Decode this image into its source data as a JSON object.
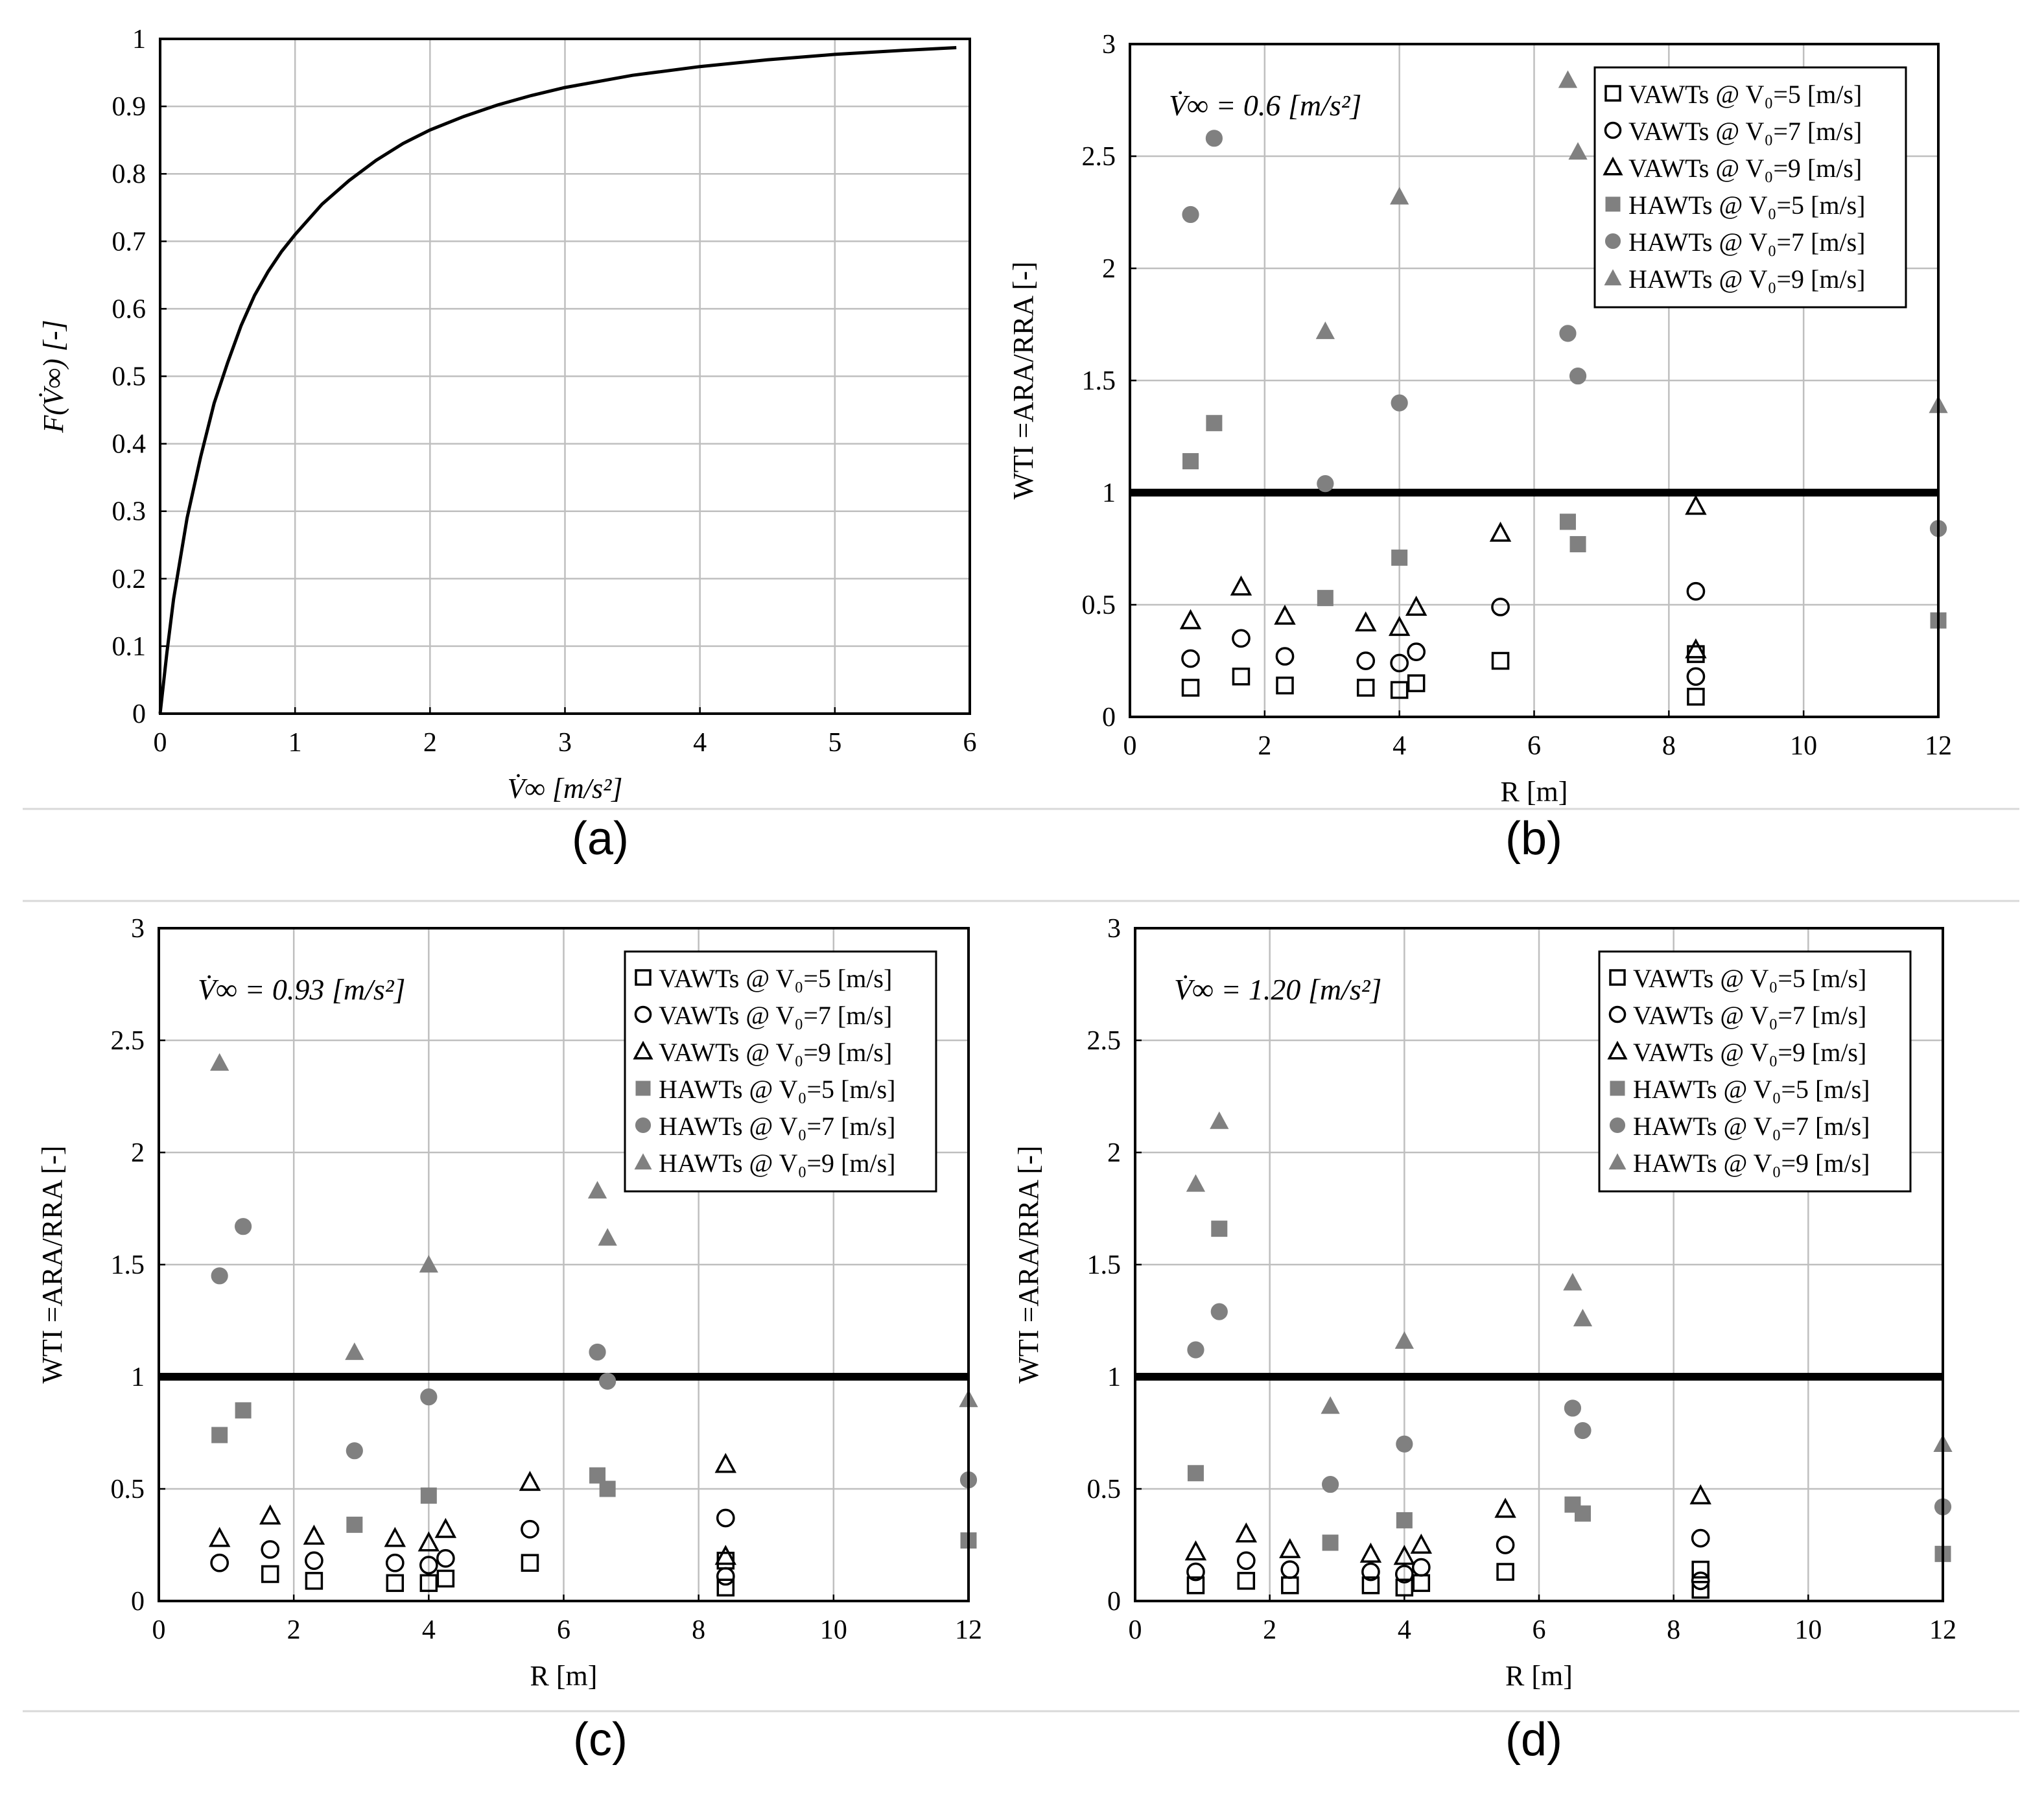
{
  "figure": {
    "panel_labels": [
      "(a)",
      "(b)",
      "(c)",
      "(d)"
    ]
  },
  "colors": {
    "axis": "#000000",
    "grid": "#bfbfbf",
    "filled_marker": "#808080",
    "threshold": "#000000",
    "separator": "#d9d9d9"
  },
  "legend_labels": [
    "VAWTs @ V₀=5  [m/s]",
    "VAWTs @ V₀=7  [m/s]",
    "VAWTs @ V₀=9  [m/s]",
    "HAWTs @ V₀=5  [m/s]",
    "HAWTs @ V₀=7  [m/s]",
    "HAWTs @ V₀=9  [m/s]"
  ],
  "chart_data": [
    {
      "panel": "(a)",
      "type": "line",
      "title": "",
      "xlabel": "V̇∞ [m/s²]",
      "ylabel": "F(V̇∞) [-]",
      "xlim": [
        0,
        6
      ],
      "ylim": [
        0,
        1
      ],
      "xticks": [
        "0",
        "1",
        "2",
        "3",
        "4",
        "5",
        "6"
      ],
      "yticks": [
        "0",
        "0.1",
        "0.2",
        "0.3",
        "0.4",
        "0.5",
        "0.6",
        "0.7",
        "0.8",
        "0.9",
        "1"
      ],
      "grid": true,
      "series": [
        {
          "name": "F",
          "x": [
            0,
            0.05,
            0.1,
            0.2,
            0.3,
            0.4,
            0.5,
            0.6,
            0.7,
            0.8,
            0.9,
            1.0,
            1.2,
            1.4,
            1.6,
            1.8,
            2.0,
            2.25,
            2.5,
            2.75,
            3.0,
            3.5,
            4.0,
            4.5,
            5.0,
            5.5,
            5.9
          ],
          "y": [
            0,
            0.09,
            0.17,
            0.29,
            0.38,
            0.46,
            0.52,
            0.575,
            0.62,
            0.655,
            0.685,
            0.71,
            0.755,
            0.79,
            0.82,
            0.845,
            0.865,
            0.885,
            0.902,
            0.916,
            0.928,
            0.946,
            0.959,
            0.969,
            0.977,
            0.983,
            0.987
          ]
        }
      ]
    },
    {
      "panel": "(b)",
      "type": "scatter",
      "annotation": "V̇∞ = 0.6 [m/s²]",
      "xlabel": "R [m]",
      "ylabel": "WTI =ARA/RRA [-]",
      "xlim": [
        0,
        12
      ],
      "ylim": [
        0,
        3
      ],
      "xticks": [
        "0",
        "2",
        "4",
        "6",
        "8",
        "10",
        "12"
      ],
      "yticks": [
        "0",
        "0.5",
        "1",
        "1.5",
        "2",
        "2.5",
        "3"
      ],
      "threshold": 1,
      "grid": true,
      "legend": "top-right",
      "series": [
        {
          "name": "VAWTs @ V0=5 [m/s]",
          "x": [
            0.9,
            1.65,
            2.3,
            3.5,
            4.0,
            4.25,
            5.5,
            8.4,
            8.4
          ],
          "y": [
            0.13,
            0.18,
            0.14,
            0.13,
            0.12,
            0.15,
            0.25,
            0.09,
            0.28
          ]
        },
        {
          "name": "VAWTs @ V0=7 [m/s]",
          "x": [
            0.9,
            1.65,
            2.3,
            3.5,
            4.0,
            4.25,
            5.5,
            8.4,
            8.4
          ],
          "y": [
            0.26,
            0.35,
            0.27,
            0.25,
            0.24,
            0.29,
            0.49,
            0.18,
            0.56
          ]
        },
        {
          "name": "VAWTs @ V0=9 [m/s]",
          "x": [
            0.9,
            1.65,
            2.3,
            3.5,
            4.0,
            4.25,
            5.5,
            8.4,
            8.4
          ],
          "y": [
            0.43,
            0.58,
            0.45,
            0.42,
            0.4,
            0.49,
            0.82,
            0.3,
            0.94
          ]
        },
        {
          "name": "HAWTs @ V0=5 [m/s]",
          "x": [
            0.9,
            1.25,
            2.9,
            4.0,
            6.5,
            6.65,
            12.0
          ],
          "y": [
            1.14,
            1.31,
            0.53,
            0.71,
            0.87,
            0.77,
            0.43
          ]
        },
        {
          "name": "HAWTs @ V0=7 [m/s]",
          "x": [
            0.9,
            1.25,
            2.9,
            4.0,
            6.5,
            6.65,
            12.0
          ],
          "y": [
            2.24,
            2.58,
            1.04,
            1.4,
            1.71,
            1.52,
            0.84
          ]
        },
        {
          "name": "HAWTs @ V0=9 [m/s]",
          "x": [
            6.5,
            6.65,
            4.0,
            2.9,
            12.0
          ],
          "y": [
            2.84,
            2.52,
            2.32,
            1.72,
            1.39
          ]
        }
      ]
    },
    {
      "panel": "(c)",
      "type": "scatter",
      "annotation": "V̇∞ = 0.93 [m/s²]",
      "xlabel": "R [m]",
      "ylabel": "WTI =ARA/RRA [-]",
      "xlim": [
        0,
        12
      ],
      "ylim": [
        0,
        3
      ],
      "xticks": [
        "0",
        "2",
        "4",
        "6",
        "8",
        "10",
        "12"
      ],
      "yticks": [
        "0",
        "0.5",
        "1",
        "1.5",
        "2",
        "2.5",
        "3"
      ],
      "threshold": 1,
      "grid": true,
      "legend": "top-right",
      "series": [
        {
          "name": "VAWTs @ V0=5 [m/s]",
          "x": [
            1.65,
            2.3,
            3.5,
            4.0,
            4.25,
            5.5,
            8.4,
            8.4
          ],
          "y": [
            0.12,
            0.09,
            0.08,
            0.08,
            0.1,
            0.17,
            0.06,
            0.18
          ]
        },
        {
          "name": "VAWTs @ V0=7 [m/s]",
          "x": [
            0.9,
            1.65,
            2.3,
            3.5,
            4.0,
            4.25,
            5.5,
            8.4,
            8.4
          ],
          "y": [
            0.17,
            0.23,
            0.18,
            0.17,
            0.16,
            0.19,
            0.32,
            0.11,
            0.37
          ]
        },
        {
          "name": "VAWTs @ V0=9 [m/s]",
          "x": [
            0.9,
            1.65,
            2.3,
            3.5,
            4.0,
            4.25,
            5.5,
            8.4,
            8.4
          ],
          "y": [
            0.28,
            0.38,
            0.29,
            0.28,
            0.26,
            0.32,
            0.53,
            0.2,
            0.61
          ]
        },
        {
          "name": "HAWTs @ V0=5 [m/s]",
          "x": [
            0.9,
            1.25,
            2.9,
            4.0,
            6.5,
            6.65,
            12.0
          ],
          "y": [
            0.74,
            0.85,
            0.34,
            0.47,
            0.56,
            0.5,
            0.27
          ]
        },
        {
          "name": "HAWTs @ V0=7 [m/s]",
          "x": [
            0.9,
            1.25,
            2.9,
            4.0,
            6.5,
            6.65,
            12.0
          ],
          "y": [
            1.45,
            1.67,
            0.67,
            0.91,
            1.11,
            0.98,
            0.54
          ]
        },
        {
          "name": "HAWTs @ V0=9 [m/s]",
          "x": [
            0.9,
            2.9,
            4.0,
            6.5,
            6.65,
            12.0
          ],
          "y": [
            2.4,
            1.11,
            1.5,
            1.83,
            1.62,
            0.9
          ]
        }
      ]
    },
    {
      "panel": "(d)",
      "type": "scatter",
      "annotation": "V̇∞ = 1.20 [m/s²]",
      "xlabel": "R [m]",
      "ylabel": "WTI =ARA/RRA [-]",
      "xlim": [
        0,
        12
      ],
      "ylim": [
        0,
        3
      ],
      "xticks": [
        "0",
        "2",
        "4",
        "6",
        "8",
        "10",
        "12"
      ],
      "yticks": [
        "0",
        "0.5",
        "1",
        "1.5",
        "2",
        "2.5",
        "3"
      ],
      "threshold": 1,
      "grid": true,
      "legend": "top-right",
      "series": [
        {
          "name": "VAWTs @ V0=5 [m/s]",
          "x": [
            0.9,
            1.65,
            2.3,
            3.5,
            4.0,
            4.25,
            5.5,
            8.4,
            8.4
          ],
          "y": [
            0.07,
            0.09,
            0.07,
            0.07,
            0.06,
            0.08,
            0.13,
            0.05,
            0.14
          ]
        },
        {
          "name": "VAWTs @ V0=7 [m/s]",
          "x": [
            0.9,
            1.65,
            2.3,
            3.5,
            4.0,
            4.25,
            5.5,
            8.4,
            8.4
          ],
          "y": [
            0.13,
            0.18,
            0.14,
            0.13,
            0.12,
            0.15,
            0.25,
            0.09,
            0.28
          ]
        },
        {
          "name": "VAWTs @ V0=9 [m/s]",
          "x": [
            0.9,
            1.65,
            2.3,
            3.5,
            4.0,
            4.25,
            5.5,
            8.4
          ],
          "y": [
            0.22,
            0.3,
            0.23,
            0.21,
            0.2,
            0.25,
            0.41,
            0.47
          ]
        },
        {
          "name": "HAWTs @ V0=5 [m/s]",
          "x": [
            0.9,
            1.25,
            2.9,
            4.0,
            6.5,
            6.65,
            12.0
          ],
          "y": [
            0.57,
            1.66,
            0.26,
            0.36,
            0.43,
            0.39,
            0.21
          ]
        },
        {
          "name": "HAWTs @ V0=7 [m/s]",
          "x": [
            0.9,
            1.25,
            2.9,
            4.0,
            6.5,
            6.65,
            12.0
          ],
          "y": [
            1.12,
            1.29,
            0.52,
            0.7,
            0.86,
            0.76,
            0.42
          ]
        },
        {
          "name": "HAWTs @ V0=9 [m/s]",
          "x": [
            0.9,
            1.25,
            2.9,
            4.0,
            6.5,
            6.65,
            12.0
          ],
          "y": [
            1.86,
            2.14,
            0.87,
            1.16,
            1.42,
            1.26,
            0.7
          ]
        }
      ]
    }
  ]
}
